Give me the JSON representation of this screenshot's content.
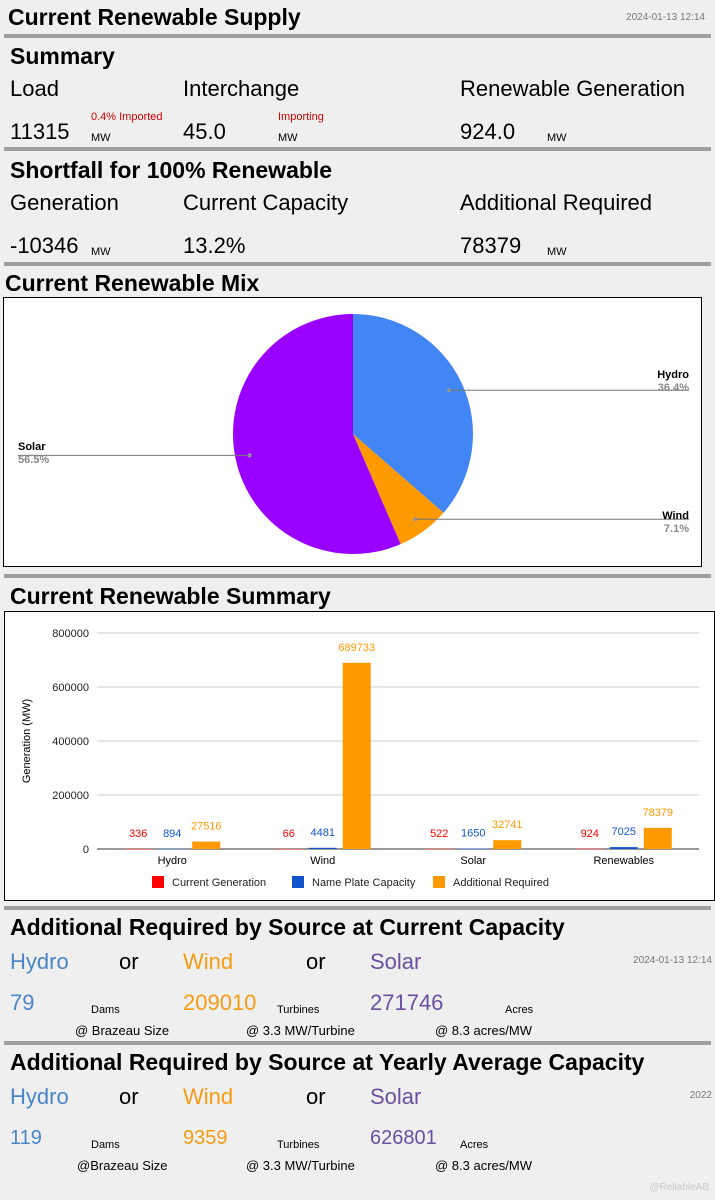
{
  "header": {
    "title": "Current Renewable Supply",
    "timestamp": "2024-01-13 12:14"
  },
  "summary": {
    "title": "Summary",
    "load_label": "Load",
    "load_value": "11315",
    "load_unit": "MW",
    "load_note": "0.4% Imported",
    "interchange_label": "Interchange",
    "interchange_value": "45.0",
    "interchange_unit": "MW",
    "interchange_note": "Importing",
    "renew_label": "Renewable Generation",
    "renew_value": "924.0",
    "renew_unit": "MW"
  },
  "shortfall": {
    "title": "Shortfall for 100% Renewable",
    "gen_label": "Generation",
    "gen_value": "-10346",
    "gen_unit": "MW",
    "cap_label": "Current Capacity",
    "cap_value": "13.2%",
    "add_label": "Additional Required",
    "add_value": "78379",
    "add_unit": "MW"
  },
  "mix": {
    "title": "Current Renewable Mix",
    "colors": {
      "Hydro": "#4285f4",
      "Wind": "#ff9900",
      "Solar": "#9900ff"
    },
    "slices": [
      {
        "name": "Hydro",
        "pct_label": "36.4%",
        "value": 36.4
      },
      {
        "name": "Wind",
        "pct_label": "7.1%",
        "value": 7.1
      },
      {
        "name": "Solar",
        "pct_label": "56.5%",
        "value": 56.5
      }
    ]
  },
  "summary_chart_title": "Current Renewable Summary",
  "chart_data": [
    {
      "type": "pie",
      "categories": [
        "Hydro",
        "Wind",
        "Solar"
      ],
      "values": [
        36.4,
        7.1,
        56.5
      ]
    },
    {
      "type": "bar",
      "ylabel": "Generation (MW)",
      "ylim": [
        0,
        800000
      ],
      "yticks": [
        "0",
        "200000",
        "400000",
        "600000",
        "800000"
      ],
      "tick_values": [
        0,
        200000,
        400000,
        600000,
        800000
      ],
      "categories": [
        "Hydro",
        "Wind",
        "Solar",
        "Renewables"
      ],
      "series": [
        {
          "name": "Current Generation",
          "color": "#ff0000",
          "values": [
            336,
            66,
            522,
            924
          ]
        },
        {
          "name": "Name Plate Capacity",
          "color": "#1155cc",
          "values": [
            894,
            4481,
            1650,
            7025
          ]
        },
        {
          "name": "Additional Required",
          "color": "#ff9900",
          "values": [
            27516,
            689733,
            32741,
            78379
          ]
        }
      ],
      "legend": "bottom"
    }
  ],
  "current_cap": {
    "title": "Additional Required by Source at Current Capacity",
    "timestamp": "2024-01-13 12:14",
    "or": "or",
    "hydro_label": "Hydro",
    "hydro_value": "79",
    "hydro_unit": "Dams",
    "hydro_note": "@ Brazeau Size",
    "wind_label": "Wind",
    "wind_value": "209010",
    "wind_unit": "Turbines",
    "wind_note": "@ 3.3 MW/Turbine",
    "solar_label": "Solar",
    "solar_value": "271746",
    "solar_unit": "Acres",
    "solar_note": "@ 8.3 acres/MW"
  },
  "yearly_cap": {
    "title": "Additional Required by Source at Yearly Average Capacity",
    "year": "2022",
    "or": "or",
    "hydro_label": "Hydro",
    "hydro_value": "119",
    "hydro_unit": "Dams",
    "hydro_note": "@Brazeau Size",
    "wind_label": "Wind",
    "wind_value": "9359",
    "wind_unit": "Turbines",
    "wind_note": "@ 3.3 MW/Turbine",
    "solar_label": "Solar",
    "solar_value": "626801",
    "solar_unit": "Acres",
    "solar_note": "@ 8.3 acres/MW"
  },
  "watermark": "@ReliableAB"
}
